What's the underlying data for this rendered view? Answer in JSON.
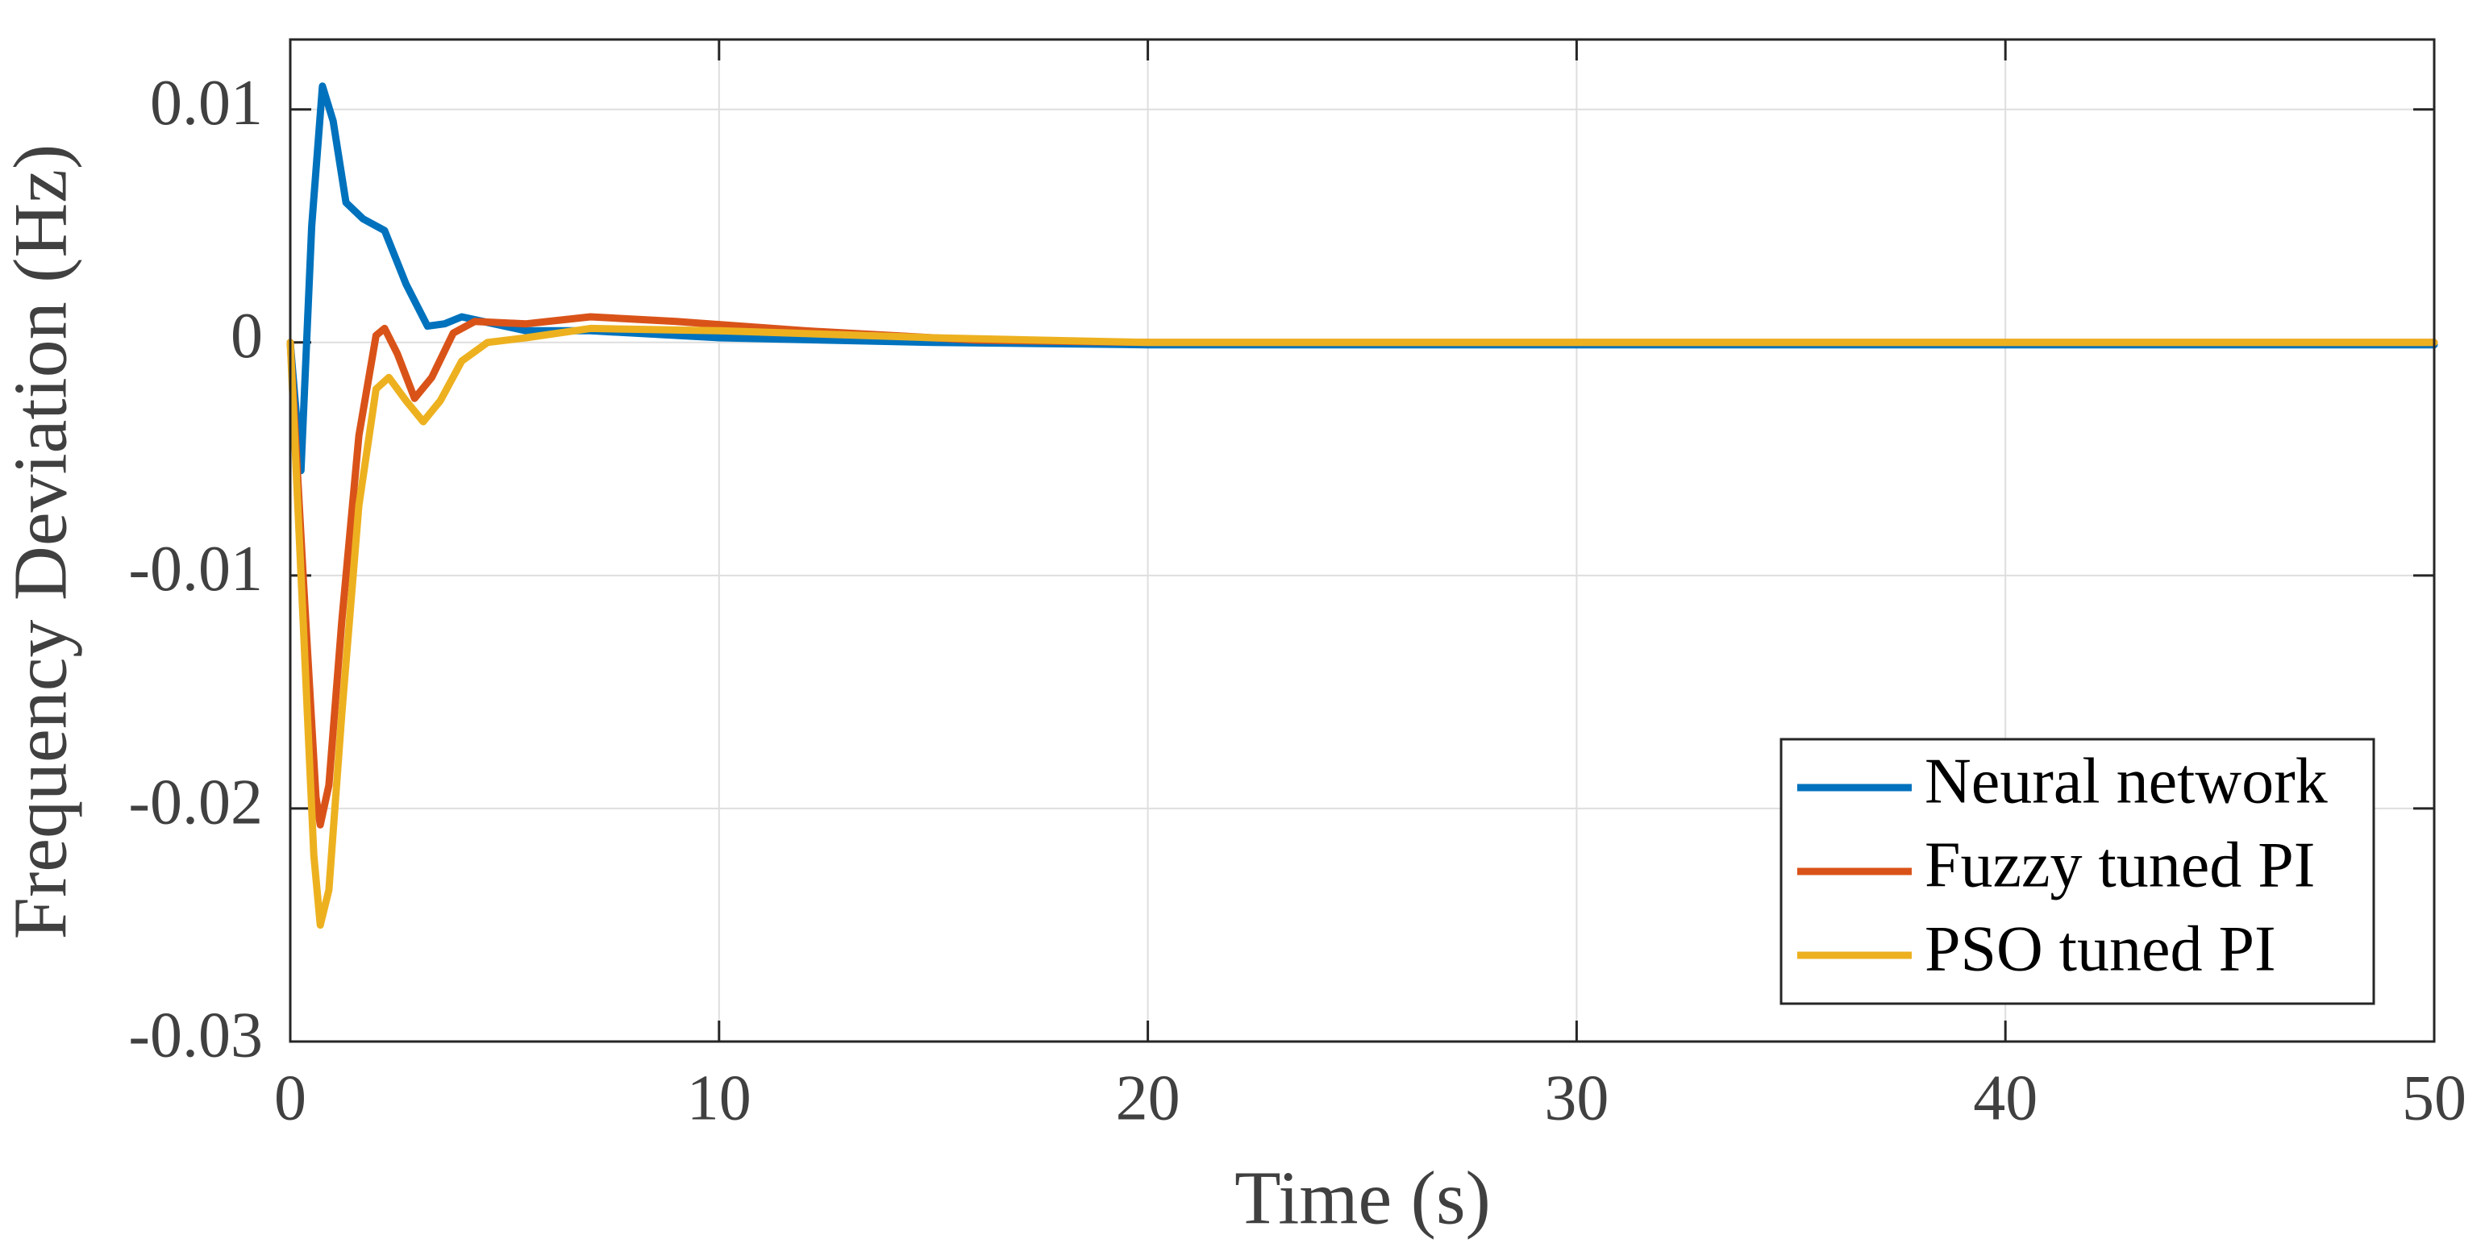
{
  "chart_data": {
    "type": "line",
    "x_label": "Time (s)",
    "y_label": "Frequency Deviation (Hz)",
    "xlim": [
      0,
      50
    ],
    "ylim": [
      -0.03,
      0.013
    ],
    "xticks": [
      0,
      10,
      20,
      30,
      40,
      50
    ],
    "yticks": [
      -0.03,
      -0.02,
      -0.01,
      0,
      0.01
    ],
    "grid": true,
    "legend": "lower right",
    "series": [
      {
        "name": "Neural network",
        "color": "#0072BD",
        "x": [
          0,
          0.25,
          0.5,
          0.75,
          1.0,
          1.3,
          1.7,
          2.2,
          2.7,
          3.2,
          3.6,
          4.0,
          4.5,
          5.5,
          7,
          10,
          15,
          20,
          30,
          50
        ],
        "values": [
          0,
          -0.0055,
          0.005,
          0.011,
          0.0095,
          0.006,
          0.0053,
          0.0048,
          0.0025,
          0.0007,
          0.0008,
          0.0011,
          0.0009,
          0.0005,
          0.0005,
          0.0002,
          0,
          -0.0001,
          -0.0001,
          -0.0001
        ]
      },
      {
        "name": "Fuzzy tuned PI",
        "color": "#D95319",
        "x": [
          0,
          0.3,
          0.6,
          0.7,
          0.9,
          1.2,
          1.6,
          2.0,
          2.2,
          2.5,
          2.9,
          3.3,
          3.8,
          4.3,
          5.5,
          7,
          9,
          12,
          16,
          20,
          50
        ],
        "values": [
          0,
          -0.01,
          -0.0195,
          -0.0207,
          -0.019,
          -0.012,
          -0.004,
          0.0003,
          0.0006,
          -0.0005,
          -0.0024,
          -0.0015,
          0.0004,
          0.0009,
          0.0008,
          0.0011,
          0.0009,
          0.0005,
          0.0001,
          0,
          0
        ]
      },
      {
        "name": "PSO tuned PI",
        "color": "#EDB120",
        "x": [
          0,
          0.3,
          0.55,
          0.7,
          0.9,
          1.2,
          1.6,
          2.0,
          2.3,
          2.7,
          3.1,
          3.5,
          4.0,
          4.6,
          5.5,
          7,
          10,
          15,
          20,
          50
        ],
        "values": [
          0,
          -0.012,
          -0.022,
          -0.025,
          -0.0235,
          -0.016,
          -0.007,
          -0.002,
          -0.0015,
          -0.0025,
          -0.0034,
          -0.0025,
          -0.0008,
          0,
          0.0002,
          0.0006,
          0.0005,
          0.0002,
          0,
          0
        ]
      }
    ]
  }
}
